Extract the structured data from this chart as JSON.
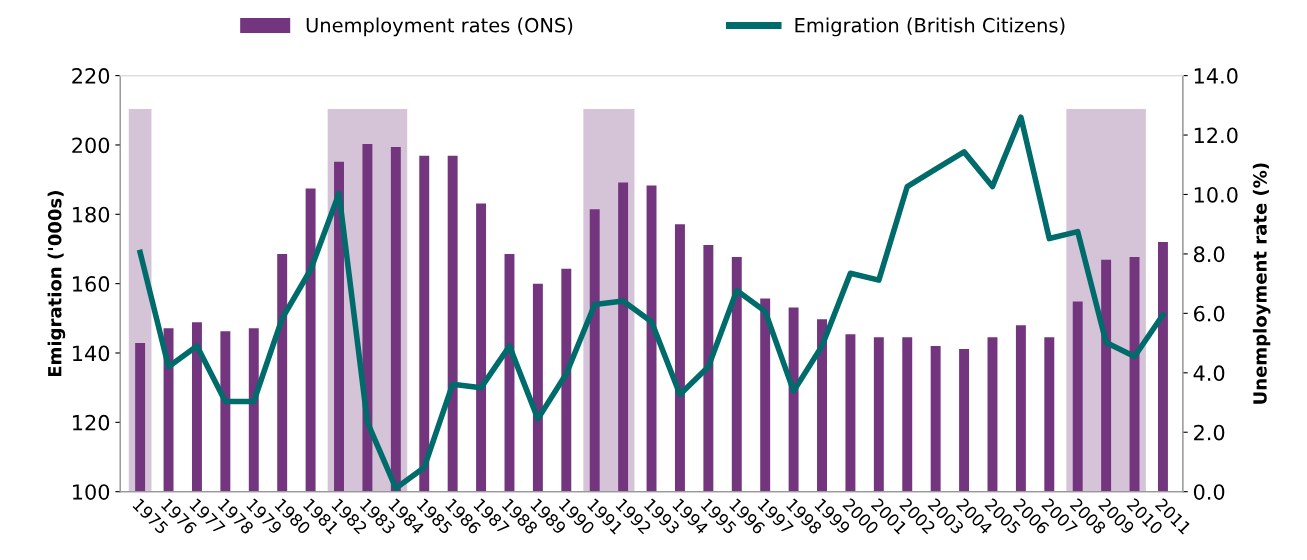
{
  "chart_data": {
    "type": "bar",
    "categories": [
      "1975",
      "1976",
      "1977",
      "1978",
      "1979",
      "1980",
      "1981",
      "1982",
      "1983",
      "1984",
      "1985",
      "1986",
      "1987",
      "1988",
      "1989",
      "1990",
      "1991",
      "1992",
      "1993",
      "1994",
      "1995",
      "1996",
      "1997",
      "1998",
      "1999",
      "2000",
      "2001",
      "2002",
      "2003",
      "2004",
      "2005",
      "2006",
      "2007",
      "2008",
      "2009",
      "2010",
      "2011"
    ],
    "series": [
      {
        "name": "Unemployment rates (ONS)",
        "axis": "y2",
        "color": "#74357f",
        "values": [
          5.0,
          5.5,
          5.7,
          5.4,
          5.5,
          8.0,
          10.2,
          11.1,
          11.7,
          11.6,
          11.3,
          11.3,
          9.7,
          8.0,
          7.0,
          7.5,
          9.5,
          10.4,
          10.3,
          9.0,
          8.3,
          7.9,
          6.5,
          6.2,
          5.8,
          5.3,
          5.2,
          5.2,
          4.9,
          4.8,
          5.2,
          5.6,
          5.2,
          6.4,
          7.8,
          7.9,
          8.4
        ]
      },
      {
        "name": "Emigration (British Citizens)",
        "type": "line",
        "color": "#006b6b",
        "values": [
          169,
          136,
          142,
          126,
          126,
          150,
          164,
          186,
          120,
          101,
          107,
          131,
          130,
          142,
          121,
          134,
          154,
          155,
          149,
          128,
          136,
          158,
          152,
          129,
          142,
          163,
          161,
          188,
          193,
          198,
          188,
          208,
          173,
          175,
          143,
          139,
          151
        ]
      }
    ],
    "ylabel": "Emigration ('000s)",
    "y2label": "Unemployment rate (%)",
    "ylim": [
      100,
      220
    ],
    "yticks": [
      100,
      120,
      140,
      160,
      180,
      200,
      220
    ],
    "y2lim": [
      0,
      14
    ],
    "y2ticks": [
      {
        "value": 0,
        "label": "0.0"
      },
      {
        "value": 2,
        "label": "2.0"
      },
      {
        "value": 4,
        "label": "4.0"
      },
      {
        "value": 6,
        "label": "6.0"
      },
      {
        "value": 8,
        "label": "8.0"
      },
      {
        "value": 10,
        "label": "10.0"
      },
      {
        "value": 12,
        "label": "12.0"
      },
      {
        "value": 14,
        "label": "14.0"
      }
    ],
    "bands": [
      {
        "axis": "x",
        "from": "1975",
        "to": "1975",
        "color": "#d5c4d8"
      },
      {
        "axis": "x",
        "from": "1982",
        "to": "1984",
        "color": "#d5c4d8"
      },
      {
        "axis": "x",
        "from": "1991",
        "to": "1992",
        "color": "#d5c4d8"
      },
      {
        "axis": "x",
        "from": "2008",
        "to": "2010",
        "color": "#d5c4d8"
      }
    ],
    "legend": "top",
    "grid": false,
    "marker": "none",
    "line_style": "solid"
  }
}
